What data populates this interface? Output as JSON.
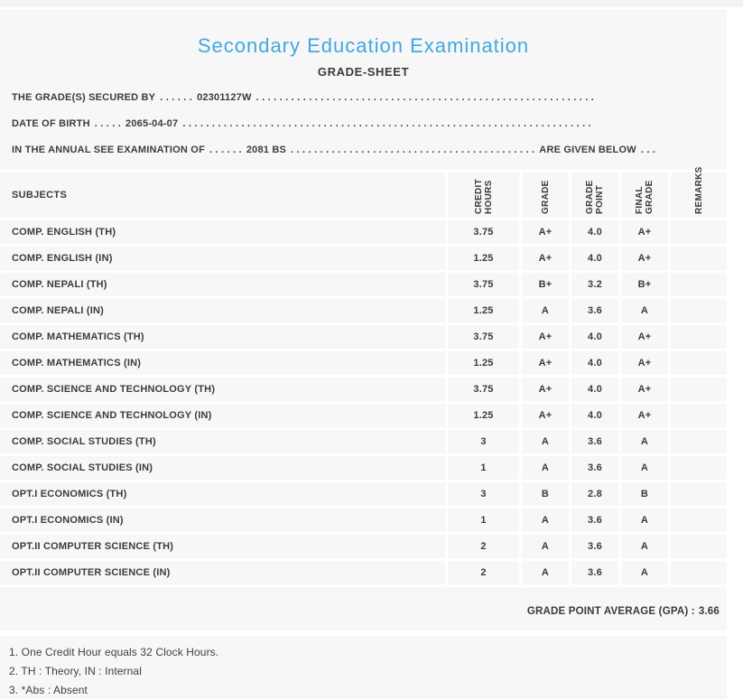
{
  "colors": {
    "accent_blue": "#41a8e1",
    "panel_background": "#f7f7f8",
    "separator_white": "#ffffff",
    "text": "#3b3b3b"
  },
  "header": {
    "title": "Secondary Education Examination",
    "subtitle": "GRADE-SHEET"
  },
  "info": {
    "secured_by": {
      "label": "THE GRADE(S) SECURED BY",
      "dots_a": ". . . . . .",
      "value": "02301127W",
      "dots_b": ". . . . . . . . . . . . . . . . . . . . . . . . . . . . . . . . . . . . . . . . . . . . . . . . . . . . . . . . . ."
    },
    "dob": {
      "label": "DATE OF BIRTH",
      "dots_a": ". . . . .",
      "value": "2065-04-07",
      "dots_b": ". . . . . . . . . . . . . . . . . . . . . . . . . . . . . . . . . . . . . . . . . . . . . . . . . . . . . . . . . . . . . . . . . . . . . ."
    },
    "exam": {
      "label": "IN THE ANNUAL SEE EXAMINATION OF",
      "dots_a": ". . . . . .",
      "value": "2081 BS",
      "dots_b": ". . . . . . . . . . . . . . . . . . . . . . . . . . . . . . . . . . . . . . . . . .",
      "suffix": "ARE GIVEN BELOW",
      "dots_c": ". . ."
    }
  },
  "table": {
    "columns": {
      "subjects": "SUBJECTS",
      "credit": "CREDIT HOURS",
      "grade": "GRADE",
      "point": "GRADE POINT",
      "final": "FINAL GRADE",
      "remarks": "REMARKS"
    },
    "rows": [
      {
        "subject": "COMP. ENGLISH (TH)",
        "credit": "3.75",
        "grade": "A+",
        "point": "4.0",
        "final": "A+",
        "remarks": ""
      },
      {
        "subject": "COMP. ENGLISH (IN)",
        "credit": "1.25",
        "grade": "A+",
        "point": "4.0",
        "final": "A+",
        "remarks": ""
      },
      {
        "subject": "COMP. NEPALI (TH)",
        "credit": "3.75",
        "grade": "B+",
        "point": "3.2",
        "final": "B+",
        "remarks": ""
      },
      {
        "subject": "COMP. NEPALI (IN)",
        "credit": "1.25",
        "grade": "A",
        "point": "3.6",
        "final": "A",
        "remarks": ""
      },
      {
        "subject": "COMP. MATHEMATICS (TH)",
        "credit": "3.75",
        "grade": "A+",
        "point": "4.0",
        "final": "A+",
        "remarks": ""
      },
      {
        "subject": "COMP. MATHEMATICS (IN)",
        "credit": "1.25",
        "grade": "A+",
        "point": "4.0",
        "final": "A+",
        "remarks": ""
      },
      {
        "subject": "COMP. SCIENCE AND TECHNOLOGY (TH)",
        "credit": "3.75",
        "grade": "A+",
        "point": "4.0",
        "final": "A+",
        "remarks": ""
      },
      {
        "subject": "COMP. SCIENCE AND TECHNOLOGY (IN)",
        "credit": "1.25",
        "grade": "A+",
        "point": "4.0",
        "final": "A+",
        "remarks": ""
      },
      {
        "subject": "COMP. SOCIAL STUDIES (TH)",
        "credit": "3",
        "grade": "A",
        "point": "3.6",
        "final": "A",
        "remarks": ""
      },
      {
        "subject": "COMP. SOCIAL STUDIES (IN)",
        "credit": "1",
        "grade": "A",
        "point": "3.6",
        "final": "A",
        "remarks": ""
      },
      {
        "subject": "OPT.I ECONOMICS (TH)",
        "credit": "3",
        "grade": "B",
        "point": "2.8",
        "final": "B",
        "remarks": ""
      },
      {
        "subject": "OPT.I ECONOMICS (IN)",
        "credit": "1",
        "grade": "A",
        "point": "3.6",
        "final": "A",
        "remarks": ""
      },
      {
        "subject": "OPT.II COMPUTER SCIENCE (TH)",
        "credit": "2",
        "grade": "A",
        "point": "3.6",
        "final": "A",
        "remarks": ""
      },
      {
        "subject": "OPT.II COMPUTER SCIENCE (IN)",
        "credit": "2",
        "grade": "A",
        "point": "3.6",
        "final": "A",
        "remarks": ""
      }
    ]
  },
  "summary": {
    "gpa_label": "GRADE POINT AVERAGE (GPA) :",
    "gpa_value": "3.66"
  },
  "notes": [
    "1. One Credit Hour equals 32 Clock Hours.",
    "2. TH : Theory, IN : Internal",
    "3. *Abs : Absent"
  ]
}
